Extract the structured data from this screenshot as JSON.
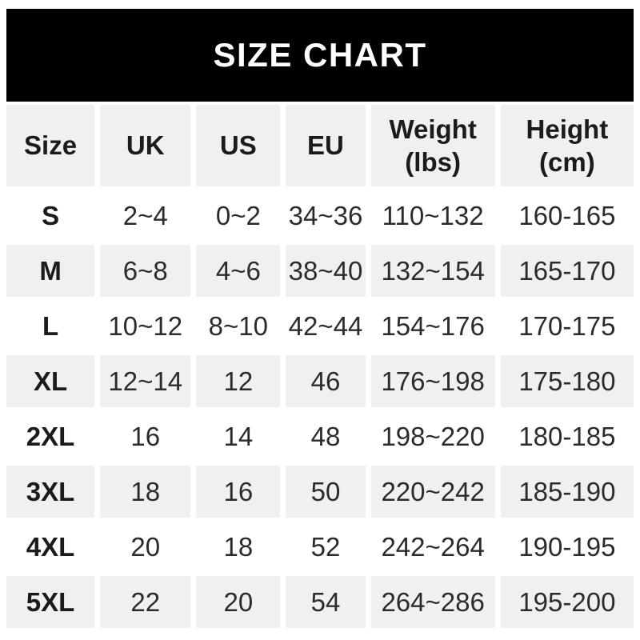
{
  "title": "SIZE CHART",
  "colors": {
    "banner_bg": "#000000",
    "banner_text": "#ffffff",
    "row_alt_bg": "#f0f0f0",
    "row_bg": "#ffffff",
    "text": "#2b2b2b",
    "bold_text": "#1b1b1f"
  },
  "headers": [
    {
      "label": "Size"
    },
    {
      "label": "UK"
    },
    {
      "label": "US"
    },
    {
      "label": "EU"
    },
    {
      "label": "Weight",
      "sub": "(lbs)"
    },
    {
      "label": "Height",
      "sub": "(cm)"
    }
  ],
  "chart_data": {
    "type": "table",
    "title": "SIZE CHART",
    "columns": [
      "Size",
      "UK",
      "US",
      "EU",
      "Weight (lbs)",
      "Height (cm)"
    ],
    "rows": [
      [
        "S",
        "2~4",
        "0~2",
        "34~36",
        "110~132",
        "160-165"
      ],
      [
        "M",
        "6~8",
        "4~6",
        "38~40",
        "132~154",
        "165-170"
      ],
      [
        "L",
        "10~12",
        "8~10",
        "42~44",
        "154~176",
        "170-175"
      ],
      [
        "XL",
        "12~14",
        "12",
        "46",
        "176~198",
        "175-180"
      ],
      [
        "2XL",
        "16",
        "14",
        "48",
        "198~220",
        "180-185"
      ],
      [
        "3XL",
        "18",
        "16",
        "50",
        "220~242",
        "185-190"
      ],
      [
        "4XL",
        "20",
        "18",
        "52",
        "242~264",
        "190-195"
      ],
      [
        "5XL",
        "22",
        "20",
        "54",
        "264~286",
        "195-200"
      ]
    ]
  }
}
